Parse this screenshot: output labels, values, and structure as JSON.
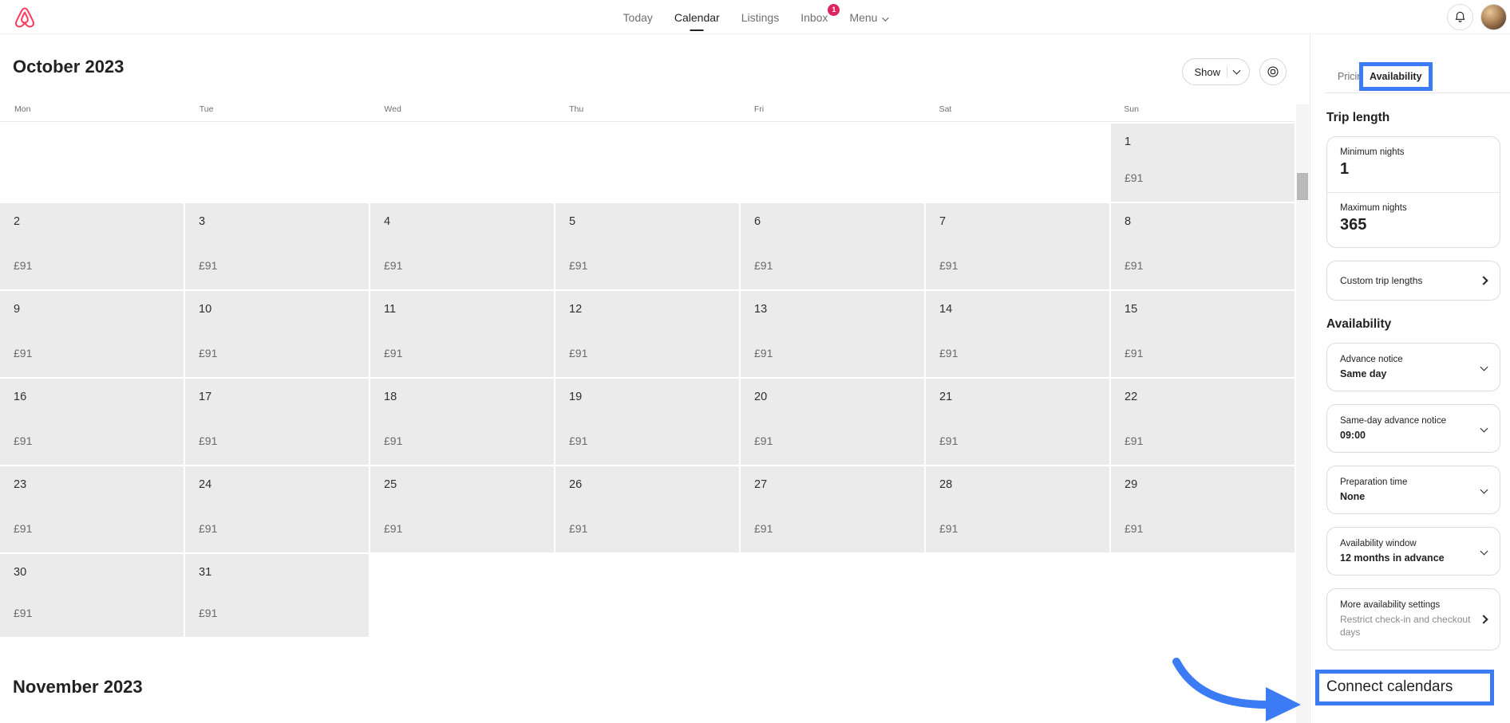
{
  "header": {
    "nav": [
      {
        "label": "Today",
        "active": false
      },
      {
        "label": "Calendar",
        "active": true
      },
      {
        "label": "Listings",
        "active": false
      },
      {
        "label": "Inbox",
        "active": false,
        "badge": "1"
      },
      {
        "label": "Menu",
        "active": false,
        "has_chevron": true
      }
    ]
  },
  "calendar": {
    "title": "October 2023",
    "show_button_label": "Show",
    "day_headers": [
      "Mon",
      "Tue",
      "Wed",
      "Thu",
      "Fri",
      "Sat",
      "Sun"
    ],
    "default_price": "£91",
    "weeks": [
      [
        null,
        null,
        null,
        null,
        null,
        null,
        1
      ],
      [
        2,
        3,
        4,
        5,
        6,
        7,
        8
      ],
      [
        9,
        10,
        11,
        12,
        13,
        14,
        15
      ],
      [
        16,
        17,
        18,
        19,
        20,
        21,
        22
      ],
      [
        23,
        24,
        25,
        26,
        27,
        28,
        29
      ],
      [
        30,
        31,
        null,
        null,
        null,
        null,
        null
      ]
    ],
    "next_month_title": "November 2023"
  },
  "sidebar": {
    "tabs": {
      "pricing": "Pricing",
      "availability": "Availability"
    },
    "trip_length": {
      "heading": "Trip length",
      "minimum_label": "Minimum nights",
      "minimum_value": "1",
      "maximum_label": "Maximum nights",
      "maximum_value": "365",
      "custom_label": "Custom trip lengths"
    },
    "availability": {
      "heading": "Availability",
      "cards": [
        {
          "label": "Advance notice",
          "value": "Same day"
        },
        {
          "label": "Same-day advance notice",
          "value": "09:00"
        },
        {
          "label": "Preparation time",
          "value": "None"
        },
        {
          "label": "Availability window",
          "value": "12 months in advance"
        },
        {
          "label": "More availability settings",
          "value": "Restrict check-in and checkout days"
        }
      ]
    },
    "connect_calendars_label": "Connect calendars"
  },
  "annotation": {
    "highlight_color": "#3b7cf5",
    "badge_color": "#e0245e",
    "brand_color": "#FF385C"
  }
}
